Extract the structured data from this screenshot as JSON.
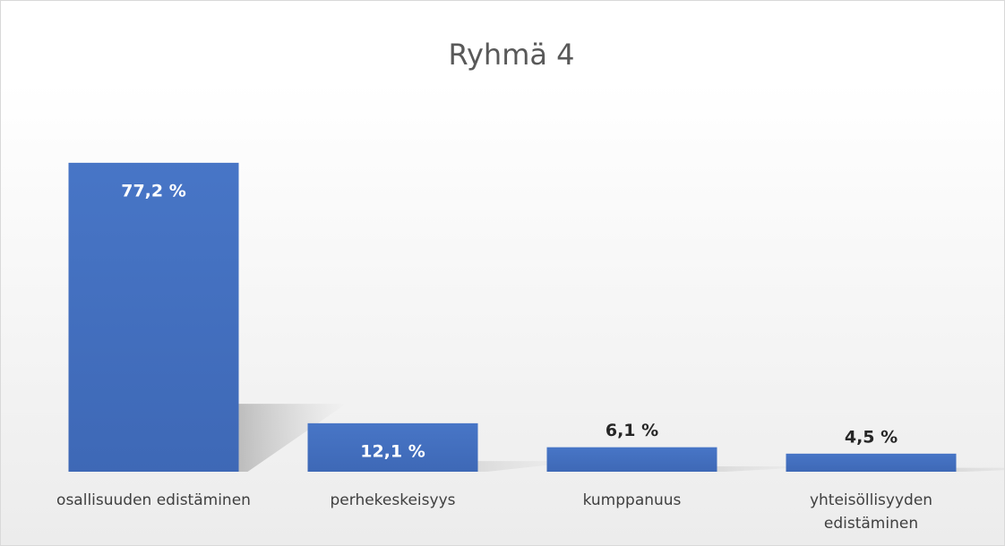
{
  "chart_data": {
    "type": "bar",
    "title": "Ryhmä 4",
    "categories": [
      "osallisuuden edistäminen",
      "perhekeskeisyys",
      "kumppanuus",
      "yhteisöllisyyden edistäminen"
    ],
    "values": [
      77.2,
      12.1,
      6.1,
      4.5
    ],
    "value_labels": [
      "77,2 %",
      "12,1 %",
      "6,1 %",
      "4,5 %"
    ],
    "color": "#4472c4"
  }
}
